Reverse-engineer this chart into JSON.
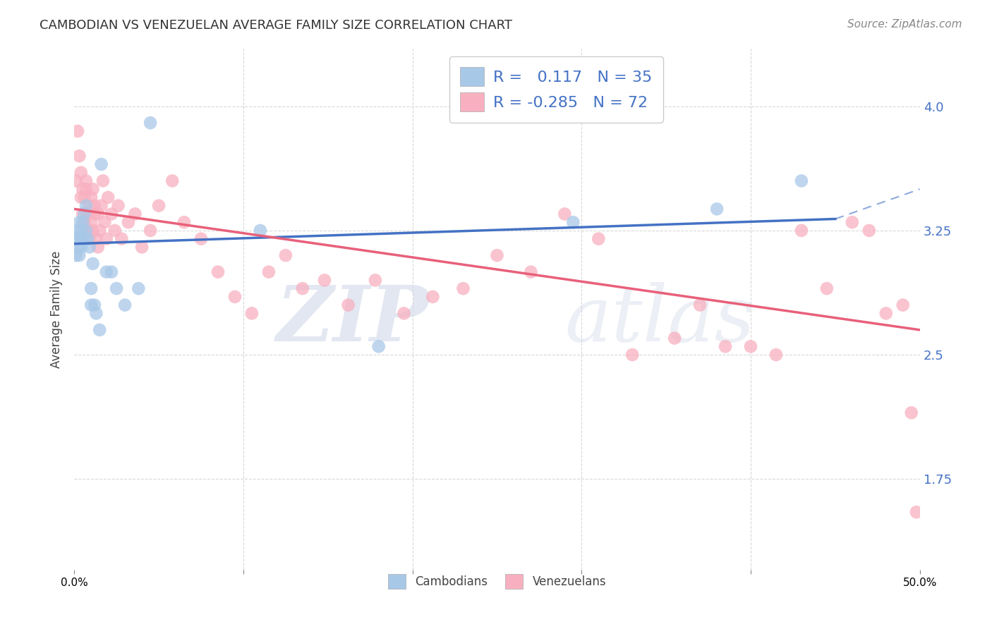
{
  "title": "CAMBODIAN VS VENEZUELAN AVERAGE FAMILY SIZE CORRELATION CHART",
  "source": "Source: ZipAtlas.com",
  "xlabel": "",
  "ylabel": "Average Family Size",
  "xlim": [
    0,
    0.5
  ],
  "ylim": [
    1.2,
    4.35
  ],
  "yticks": [
    1.75,
    2.5,
    3.25,
    4.0
  ],
  "xticks": [
    0.0,
    0.1,
    0.2,
    0.3,
    0.4,
    0.5
  ],
  "xticklabels": [
    "0.0%",
    "",
    "",
    "",
    "",
    "50.0%"
  ],
  "background_color": "#ffffff",
  "grid_color": "#d8d8d8",
  "watermark_zip": "ZIP",
  "watermark_atlas": "atlas",
  "cambodian_color": "#a8c8e8",
  "venezuelan_color": "#f8b0c0",
  "cambodian_line_color": "#4472c4",
  "venezuelan_line_color": "#e8607a",
  "cambodian_R": 0.117,
  "cambodian_N": 35,
  "venezuelan_R": -0.285,
  "venezuelan_N": 72,
  "cambodian_line_x0": 0.0,
  "cambodian_line_y0": 3.17,
  "cambodian_line_x1": 0.45,
  "cambodian_line_y1": 3.32,
  "cambodian_line_ext_x1": 0.5,
  "cambodian_line_ext_y1": 3.5,
  "venezuelan_line_x0": 0.0,
  "venezuelan_line_y0": 3.38,
  "venezuelan_line_x1": 0.5,
  "venezuelan_line_y1": 2.65,
  "cambodian_x": [
    0.001,
    0.001,
    0.002,
    0.002,
    0.003,
    0.003,
    0.003,
    0.004,
    0.004,
    0.005,
    0.005,
    0.006,
    0.006,
    0.007,
    0.007,
    0.008,
    0.009,
    0.01,
    0.01,
    0.011,
    0.012,
    0.013,
    0.015,
    0.016,
    0.019,
    0.022,
    0.025,
    0.03,
    0.038,
    0.045,
    0.11,
    0.18,
    0.295,
    0.38,
    0.43
  ],
  "cambodian_y": [
    3.2,
    3.1,
    3.25,
    3.15,
    3.3,
    3.2,
    3.1,
    3.25,
    3.15,
    3.3,
    3.2,
    3.35,
    3.2,
    3.4,
    3.25,
    3.2,
    3.15,
    2.9,
    2.8,
    3.05,
    2.8,
    2.75,
    2.65,
    3.65,
    3.0,
    3.0,
    2.9,
    2.8,
    2.9,
    3.9,
    3.25,
    2.55,
    3.3,
    3.38,
    3.55
  ],
  "venezuelan_x": [
    0.001,
    0.002,
    0.003,
    0.004,
    0.004,
    0.005,
    0.005,
    0.006,
    0.006,
    0.007,
    0.007,
    0.008,
    0.008,
    0.009,
    0.009,
    0.01,
    0.01,
    0.011,
    0.011,
    0.012,
    0.012,
    0.013,
    0.014,
    0.014,
    0.015,
    0.016,
    0.017,
    0.018,
    0.019,
    0.02,
    0.022,
    0.024,
    0.026,
    0.028,
    0.032,
    0.036,
    0.04,
    0.045,
    0.05,
    0.058,
    0.065,
    0.075,
    0.085,
    0.095,
    0.105,
    0.115,
    0.125,
    0.135,
    0.148,
    0.162,
    0.178,
    0.195,
    0.212,
    0.23,
    0.25,
    0.27,
    0.29,
    0.31,
    0.33,
    0.355,
    0.37,
    0.385,
    0.4,
    0.415,
    0.43,
    0.445,
    0.46,
    0.47,
    0.48,
    0.49,
    0.495,
    0.498
  ],
  "venezuelan_y": [
    3.55,
    3.85,
    3.7,
    3.6,
    3.45,
    3.5,
    3.35,
    3.45,
    3.3,
    3.5,
    3.55,
    3.35,
    3.25,
    3.4,
    3.2,
    3.3,
    3.45,
    3.5,
    3.25,
    3.35,
    3.4,
    3.2,
    3.35,
    3.15,
    3.25,
    3.4,
    3.55,
    3.3,
    3.2,
    3.45,
    3.35,
    3.25,
    3.4,
    3.2,
    3.3,
    3.35,
    3.15,
    3.25,
    3.4,
    3.55,
    3.3,
    3.2,
    3.0,
    2.85,
    2.75,
    3.0,
    3.1,
    2.9,
    2.95,
    2.8,
    2.95,
    2.75,
    2.85,
    2.9,
    3.1,
    3.0,
    3.35,
    3.2,
    2.5,
    2.6,
    2.8,
    2.55,
    2.55,
    2.5,
    3.25,
    2.9,
    3.3,
    3.25,
    2.75,
    2.8,
    2.15,
    1.55
  ]
}
